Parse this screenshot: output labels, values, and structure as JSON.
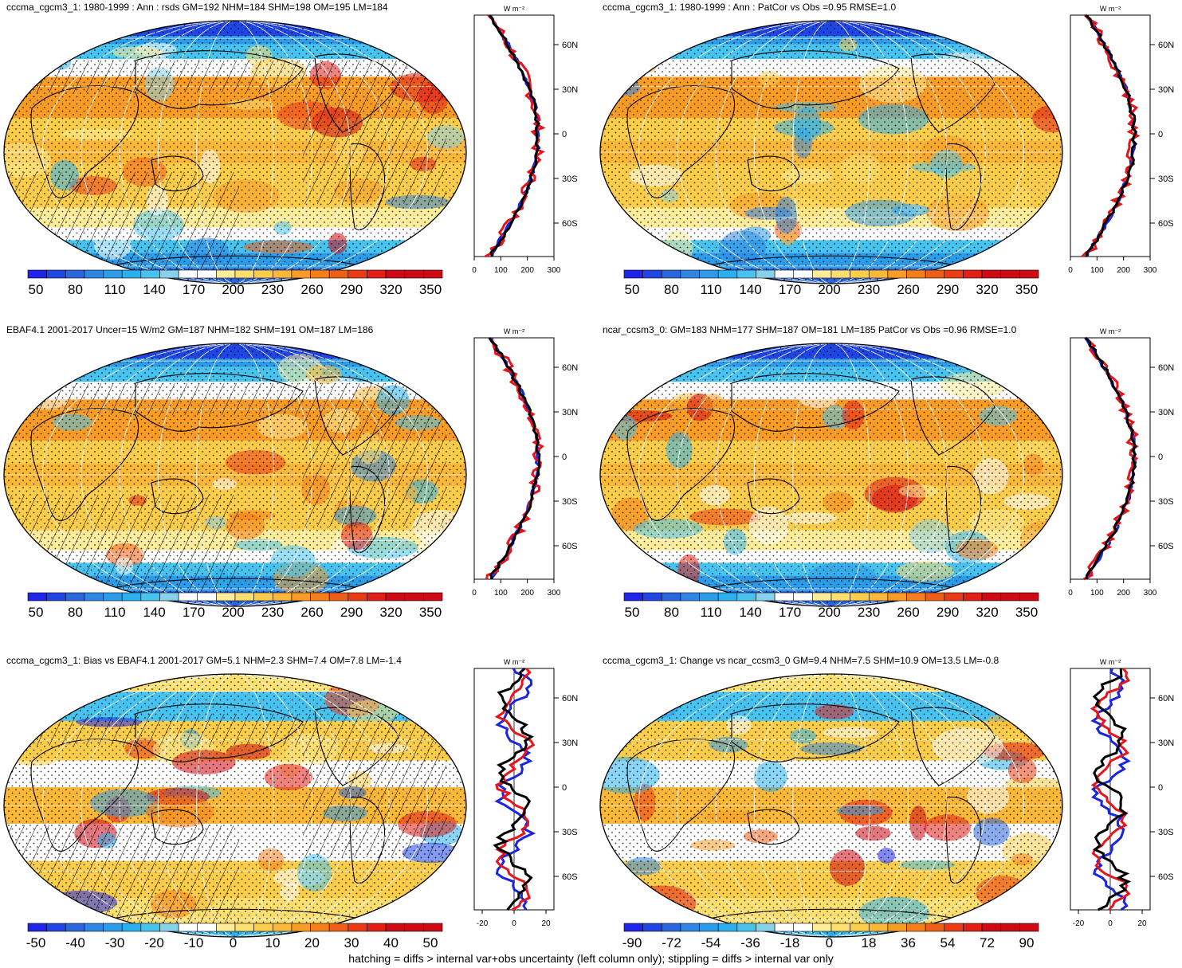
{
  "footer": "hatching = diffs > internal var+obs uncertainty (left column only); stippling = diffs > internal var only",
  "profile_unit": "W m⁻²",
  "lat_labels": [
    "60N",
    "30N",
    "0",
    "30S",
    "60S"
  ],
  "palette": {
    "blues": [
      "#1e24e8",
      "#1f45e3",
      "#2a66de",
      "#2f86e3",
      "#2d9ce8",
      "#2ab0ee",
      "#48c2ee",
      "#86d2ea"
    ],
    "white": "#ffffff",
    "warms": [
      "#ffec99",
      "#fddf6f",
      "#fccd4b",
      "#fbb737",
      "#f89c26",
      "#f47e1a",
      "#ee5e16",
      "#e93c15",
      "#e21e17",
      "#cf0a14"
    ],
    "profile_colors": {
      "model": "#e8131b",
      "obs": "#1a25e0",
      "other": "#000000"
    }
  },
  "panels": [
    {
      "id": "top-left",
      "title": "cccma_cgcm3_1: 1980-1999 : Ann : rsds GM=192 NHM=184 SHM=198 OM=195 LM=184",
      "colorbar_labels": [
        "50",
        "80",
        "110",
        "140",
        "170",
        "200",
        "230",
        "260",
        "290",
        "320",
        "350"
      ],
      "profile_xticks": [
        "0",
        "100",
        "200",
        "300"
      ],
      "hatched": true,
      "type": "absolute"
    },
    {
      "id": "top-right",
      "title": "cccma_cgcm3_1: 1980-1999 : Ann : PatCor vs Obs =0.95 RMSE=1.0",
      "colorbar_labels": [
        "50",
        "80",
        "110",
        "140",
        "170",
        "200",
        "230",
        "260",
        "290",
        "320",
        "350"
      ],
      "profile_xticks": [
        "0",
        "100",
        "200",
        "300"
      ],
      "hatched": false,
      "type": "absolute"
    },
    {
      "id": "middle-left",
      "title": "EBAF4.1 2001-2017 Uncer=15 W/m2 GM=187 NHM=182 SHM=191 OM=187 LM=186",
      "colorbar_labels": [
        "50",
        "80",
        "110",
        "140",
        "170",
        "200",
        "230",
        "260",
        "290",
        "320",
        "350"
      ],
      "profile_xticks": [
        "0",
        "100",
        "200",
        "300"
      ],
      "hatched": true,
      "type": "absolute"
    },
    {
      "id": "middle-right",
      "title": "ncar_ccsm3_0: GM=183 NHM=177 SHM=187 OM=181 LM=185 PatCor vs Obs =0.96 RMSE=1.0",
      "colorbar_labels": [
        "50",
        "80",
        "110",
        "140",
        "170",
        "200",
        "230",
        "260",
        "290",
        "320",
        "350"
      ],
      "profile_xticks": [
        "0",
        "100",
        "200",
        "300"
      ],
      "hatched": false,
      "type": "absolute"
    },
    {
      "id": "bottom-left",
      "title": "cccma_cgcm3_1: Bias vs EBAF4.1 2001-2017 GM=5.1 NHM=2.3 SHM=7.4 OM=7.8 LM=-1.4",
      "colorbar_labels": [
        "-50",
        "-40",
        "-30",
        "-20",
        "-10",
        "0",
        "10",
        "20",
        "30",
        "40",
        "50"
      ],
      "profile_xticks": [
        "-20",
        "0",
        "20"
      ],
      "hatched": true,
      "type": "diff"
    },
    {
      "id": "bottom-right",
      "title": "cccma_cgcm3_1: Change vs ncar_ccsm3_0 GM=9.4 NHM=7.5 SHM=10.9 OM=13.5 LM=-0.8",
      "colorbar_labels": [
        "-90",
        "-72",
        "-54",
        "-36",
        "-18",
        "0",
        "18",
        "36",
        "54",
        "72",
        "90"
      ],
      "profile_xticks": [
        "-20",
        "0",
        "20"
      ],
      "hatched": false,
      "type": "diff"
    }
  ]
}
